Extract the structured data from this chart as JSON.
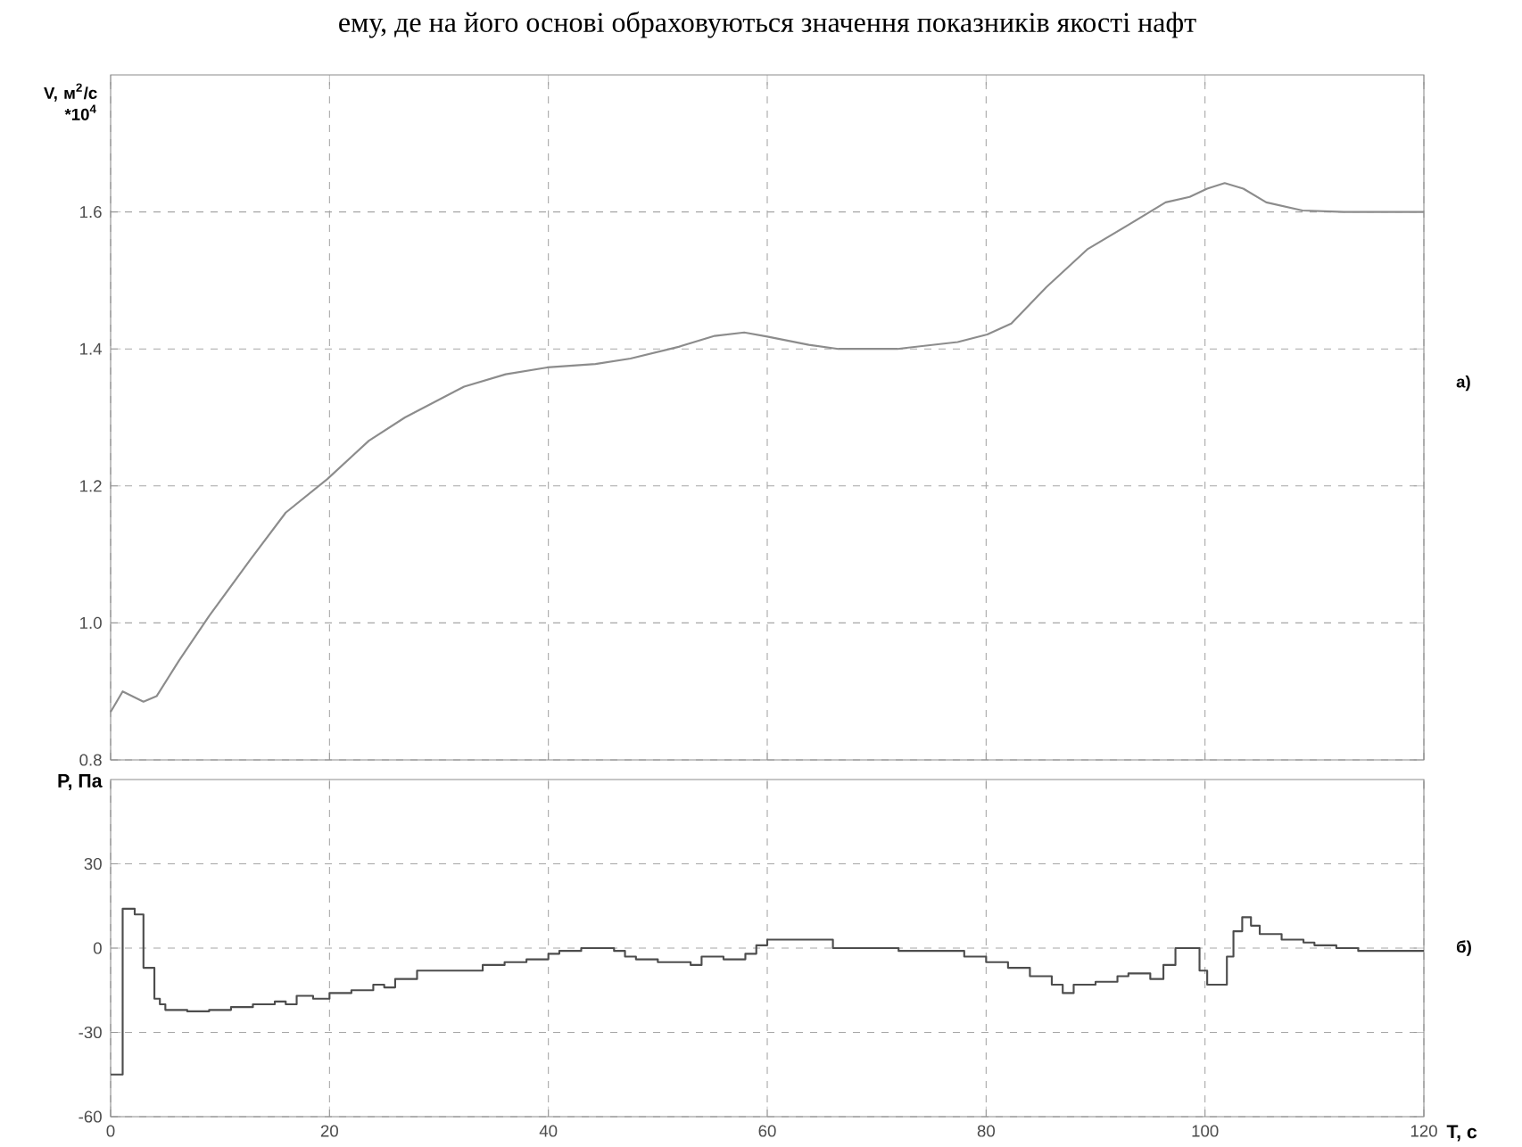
{
  "chart_data": [
    {
      "type": "line",
      "ylabel": "V, м$^{2}$/с *10$^{4}$",
      "annotations": [
        "ему, де на його основі обраховуються значення показників якості нафт",
        "а)"
      ],
      "x": [
        0,
        1.1,
        3,
        4.2,
        6.25,
        9,
        12.8,
        16,
        19.8,
        23.6,
        26.9,
        32.3,
        36.1,
        39.9,
        44.3,
        47.5,
        51.9,
        55.2,
        57.9,
        60,
        63.8,
        66.5,
        71.9,
        77.4,
        80.1,
        82.3,
        85.5,
        89.3,
        93.1,
        96.4,
        98.6,
        100.2,
        101.8,
        103.5,
        105.6,
        108.9,
        112.7,
        120
      ],
      "series": [
        {
          "color": "#8c8c8c",
          "values": [
            0.87,
            0.9,
            0.885,
            0.893,
            0.945,
            1.01,
            1.093,
            1.161,
            1.21,
            1.266,
            1.3,
            1.345,
            1.363,
            1.373,
            1.378,
            1.386,
            1.403,
            1.419,
            1.424,
            1.418,
            1.406,
            1.4,
            1.4,
            1.41,
            1.421,
            1.437,
            1.49,
            1.546,
            1.582,
            1.614,
            1.622,
            1.634,
            1.642,
            1.634,
            1.614,
            1.602,
            1.6,
            1.6
          ]
        }
      ],
      "xlim": [
        0,
        120
      ],
      "xticks": [
        0,
        20,
        40,
        60,
        80,
        100,
        120
      ],
      "ylim": [
        0.8,
        1.8
      ],
      "yticks": [
        {
          "value": 0.8,
          "label": "0.8"
        },
        {
          "value": 1.0,
          "label": "1.0"
        },
        {
          "value": 1.2,
          "label": "1.2"
        },
        {
          "value": 1.4,
          "label": "1.4"
        },
        {
          "value": 1.6,
          "label": "1.6"
        }
      ],
      "grid": true,
      "tick_labels": "y"
    },
    {
      "type": "step",
      "ylabel": "P, Па",
      "xlabel": "T, c",
      "annotations": [
        "б)"
      ],
      "x": [
        0,
        1.1,
        2.2,
        3,
        4,
        4.5,
        5,
        7,
        9,
        11,
        13,
        15,
        16,
        17,
        18.5,
        20,
        22,
        24,
        25,
        26,
        28,
        32,
        34,
        36,
        38,
        40,
        41,
        43,
        46,
        47,
        48,
        50,
        53,
        54,
        56,
        58,
        59,
        60,
        66,
        72,
        76,
        78,
        80,
        82,
        84,
        86,
        87,
        88,
        90,
        92,
        93,
        95,
        96.2,
        97.3,
        99.5,
        100.2,
        101.5,
        102,
        102.6,
        103.4,
        104.2,
        105,
        107,
        109,
        110,
        112,
        114,
        120
      ],
      "series": [
        {
          "color": "#4d4d4d",
          "values": [
            -45,
            14,
            12,
            -7,
            -18,
            -20,
            -22,
            -22.5,
            -22,
            -21,
            -20,
            -19,
            -20,
            -17,
            -18,
            -16,
            -15,
            -13,
            -14,
            -11,
            -8,
            -8,
            -6,
            -5,
            -4,
            -2,
            -1,
            0,
            -1,
            -3,
            -4,
            -5,
            -6,
            -3,
            -4,
            -2,
            1,
            3,
            0,
            -1,
            -1,
            -3,
            -5,
            -7,
            -10,
            -13,
            -16,
            -13,
            -12,
            -10,
            -9,
            -11,
            -6,
            0,
            -8,
            -13,
            -13,
            -3,
            6,
            11,
            8,
            5,
            3,
            2,
            1,
            0,
            -1,
            -1
          ]
        }
      ],
      "xlim": [
        0,
        120
      ],
      "xticks": [
        0,
        20,
        40,
        60,
        80,
        100,
        120
      ],
      "ylim": [
        -60,
        60
      ],
      "yticks": [
        -60,
        -30,
        0,
        30
      ],
      "grid": true
    }
  ]
}
